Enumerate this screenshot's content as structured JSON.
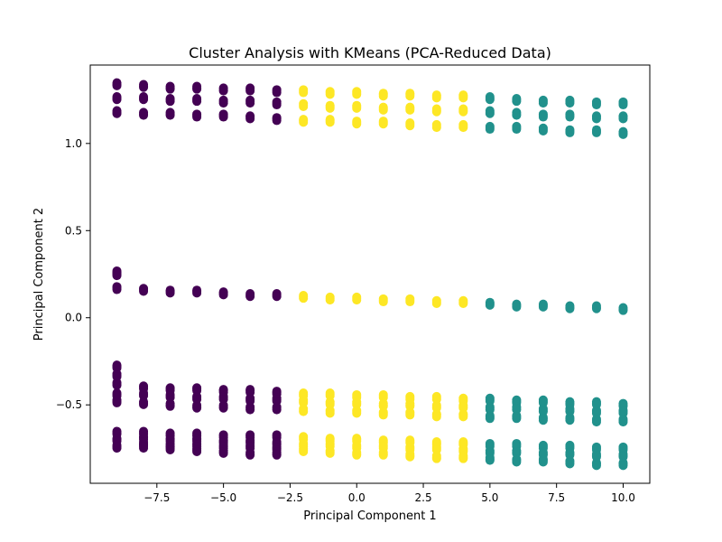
{
  "chart_data": {
    "type": "scatter",
    "title": "Cluster Analysis with KMeans (PCA-Reduced Data)",
    "xlabel": "Principal Component 1",
    "ylabel": "Principal Component 2",
    "xlim": [
      -10.0,
      11.0
    ],
    "ylim": [
      -0.95,
      1.45
    ],
    "xticks": [
      -7.5,
      -5.0,
      -2.5,
      0.0,
      2.5,
      5.0,
      7.5,
      10.0
    ],
    "xtick_labels": [
      "−7.5",
      "−5.0",
      "−2.5",
      "0.0",
      "2.5",
      "5.0",
      "7.5",
      "10.0"
    ],
    "yticks": [
      -0.5,
      0.0,
      0.5,
      1.0
    ],
    "ytick_labels": [
      "−0.5",
      "0.0",
      "0.5",
      "1.0"
    ],
    "grid": false,
    "legend": "none",
    "series": [
      {
        "cluster": 0,
        "color": "#440154",
        "x": [
          -9,
          -9,
          -9,
          -9,
          -9,
          -9,
          -9,
          -9,
          -9,
          -9,
          -9,
          -9,
          -9,
          -9,
          -8,
          -8,
          -8,
          -8,
          -8,
          -8,
          -8,
          -8,
          -8,
          -8,
          -8,
          -7,
          -7,
          -7,
          -7,
          -7,
          -7,
          -7,
          -7,
          -7,
          -7,
          -7,
          -6,
          -6,
          -6,
          -6,
          -6,
          -6,
          -6,
          -6,
          -6,
          -6,
          -6,
          -5,
          -5,
          -5,
          -5,
          -5,
          -5,
          -5,
          -5,
          -5,
          -5,
          -5,
          -4,
          -4,
          -4,
          -4,
          -4,
          -4,
          -4,
          -4,
          -4,
          -4,
          -4,
          -3,
          -3,
          -3,
          -3,
          -3,
          -3,
          -3,
          -3,
          -3,
          -3,
          -3
        ],
        "y": [
          1.34,
          1.26,
          1.18,
          0.26,
          0.25,
          0.17,
          -0.28,
          -0.33,
          -0.38,
          -0.44,
          -0.48,
          -0.66,
          -0.7,
          -0.74,
          1.33,
          1.26,
          1.17,
          0.16,
          -0.4,
          -0.44,
          -0.49,
          -0.66,
          -0.69,
          -0.72,
          -0.74,
          1.32,
          1.25,
          1.17,
          0.15,
          -0.41,
          -0.45,
          -0.5,
          -0.67,
          -0.7,
          -0.73,
          -0.75,
          1.32,
          1.25,
          1.16,
          0.15,
          -0.41,
          -0.46,
          -0.51,
          -0.67,
          -0.7,
          -0.73,
          -0.76,
          1.31,
          1.24,
          1.16,
          0.14,
          -0.42,
          -0.46,
          -0.51,
          -0.68,
          -0.71,
          -0.74,
          -0.77,
          1.31,
          1.24,
          1.15,
          0.13,
          -0.42,
          -0.47,
          -0.52,
          -0.68,
          -0.71,
          -0.74,
          -0.78,
          1.3,
          1.23,
          1.14,
          0.13,
          -0.43,
          -0.47,
          -0.52,
          -0.68,
          -0.72,
          -0.75,
          -0.78
        ]
      },
      {
        "cluster": 1,
        "color": "#fde725",
        "x": [
          -2,
          -2,
          -2,
          -2,
          -2,
          -2,
          -2,
          -2,
          -2,
          -2,
          -1,
          -1,
          -1,
          -1,
          -1,
          -1,
          -1,
          -1,
          -1,
          -1,
          0,
          0,
          0,
          0,
          0,
          0,
          0,
          0,
          0,
          0,
          1,
          1,
          1,
          1,
          1,
          1,
          1,
          1,
          1,
          1,
          2,
          2,
          2,
          2,
          2,
          2,
          2,
          2,
          2,
          2,
          3,
          3,
          3,
          3,
          3,
          3,
          3,
          3,
          3,
          3,
          4,
          4,
          4,
          4,
          4,
          4,
          4,
          4,
          4,
          4
        ],
        "y": [
          1.3,
          1.22,
          1.13,
          0.12,
          -0.44,
          -0.48,
          -0.53,
          -0.69,
          -0.73,
          -0.76,
          1.29,
          1.21,
          1.13,
          0.11,
          -0.44,
          -0.49,
          -0.54,
          -0.7,
          -0.73,
          -0.77,
          1.29,
          1.21,
          1.12,
          0.11,
          -0.45,
          -0.49,
          -0.54,
          -0.7,
          -0.74,
          -0.78,
          1.28,
          1.2,
          1.12,
          0.1,
          -0.45,
          -0.5,
          -0.55,
          -0.71,
          -0.74,
          -0.78,
          1.28,
          1.2,
          1.11,
          0.1,
          -0.46,
          -0.5,
          -0.55,
          -0.71,
          -0.75,
          -0.79,
          1.27,
          1.19,
          1.1,
          0.09,
          -0.46,
          -0.51,
          -0.56,
          -0.72,
          -0.75,
          -0.8,
          1.27,
          1.19,
          1.1,
          0.09,
          -0.47,
          -0.51,
          -0.56,
          -0.72,
          -0.76,
          -0.8
        ]
      },
      {
        "cluster": 2,
        "color": "#21918c",
        "x": [
          5,
          5,
          5,
          5,
          5,
          5,
          5,
          5,
          5,
          5,
          6,
          6,
          6,
          6,
          6,
          6,
          6,
          6,
          6,
          6,
          7,
          7,
          7,
          7,
          7,
          7,
          7,
          7,
          7,
          7,
          8,
          8,
          8,
          8,
          8,
          8,
          8,
          8,
          8,
          8,
          9,
          9,
          9,
          9,
          9,
          9,
          9,
          9,
          9,
          9,
          10,
          10,
          10,
          10,
          10,
          10,
          10,
          10,
          10,
          10
        ],
        "y": [
          1.26,
          1.18,
          1.09,
          0.08,
          -0.47,
          -0.52,
          -0.57,
          -0.73,
          -0.77,
          -0.81,
          1.25,
          1.17,
          1.09,
          0.07,
          -0.48,
          -0.52,
          -0.57,
          -0.73,
          -0.77,
          -0.82,
          1.24,
          1.16,
          1.08,
          0.07,
          -0.48,
          -0.53,
          -0.58,
          -0.74,
          -0.78,
          -0.82,
          1.24,
          1.16,
          1.07,
          0.06,
          -0.49,
          -0.53,
          -0.58,
          -0.74,
          -0.78,
          -0.83,
          1.23,
          1.15,
          1.07,
          0.06,
          -0.49,
          -0.54,
          -0.59,
          -0.75,
          -0.79,
          -0.84,
          1.23,
          1.15,
          1.06,
          0.05,
          -0.5,
          -0.54,
          -0.59,
          -0.75,
          -0.79,
          -0.84
        ]
      }
    ]
  }
}
